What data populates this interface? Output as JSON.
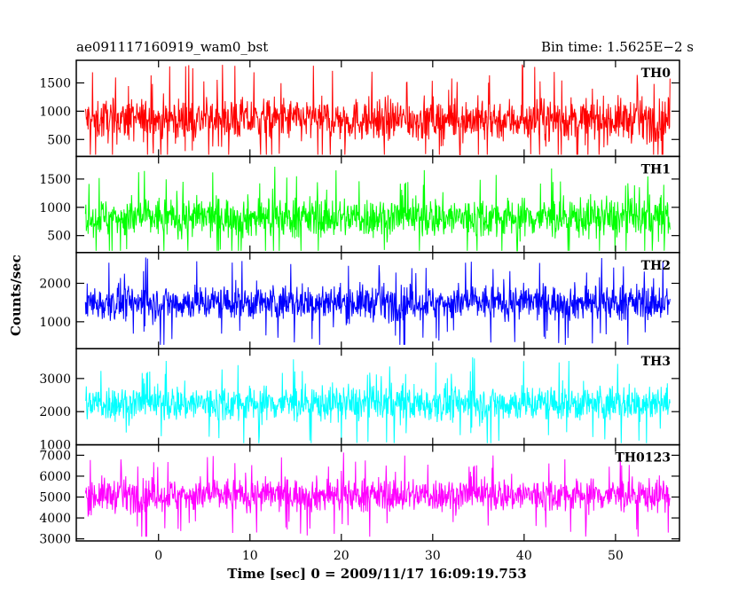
{
  "header": {
    "title_left": "ae091117160919_wam0_bst",
    "title_right": "Bin time: 1.5625E−2 s"
  },
  "chart_data": {
    "type": "line",
    "title": "ae091117160919_wam0_bst",
    "subtitle": "Bin time: 1.5625E−2 s",
    "xlabel": "Time [sec] 0 = 2009/11/17 16:09:19.753",
    "ylabel": "Counts/sec",
    "xlim": [
      -9,
      57
    ],
    "x_range_data": [
      -8,
      56
    ],
    "x_ticks": [
      0,
      10,
      20,
      30,
      40,
      50
    ],
    "grid": false,
    "panels": [
      {
        "name": "TH0",
        "color": "#ff0000",
        "ylim": [
          200,
          1900
        ],
        "y_ticks": [
          500,
          1000,
          1500
        ],
        "mean": 850,
        "amplitude": 650,
        "min": 230,
        "max": 1880
      },
      {
        "name": "TH1",
        "color": "#00ff00",
        "ylim": [
          200,
          1900
        ],
        "y_ticks": [
          500,
          1000,
          1500
        ],
        "mean": 820,
        "amplitude": 620,
        "min": 230,
        "max": 1880
      },
      {
        "name": "TH2",
        "color": "#0000ff",
        "ylim": [
          300,
          2800
        ],
        "y_ticks": [
          1000,
          2000
        ],
        "mean": 1500,
        "amplitude": 800,
        "min": 400,
        "max": 2750
      },
      {
        "name": "TH3",
        "color": "#00ffff",
        "ylim": [
          1000,
          3900
        ],
        "y_ticks": [
          1000,
          2000,
          3000
        ],
        "mean": 2250,
        "amplitude": 950,
        "min": 1050,
        "max": 3850
      },
      {
        "name": "TH0123",
        "color": "#ff00ff",
        "ylim": [
          2900,
          7500
        ],
        "y_ticks": [
          3000,
          4000,
          5000,
          6000,
          7000
        ],
        "mean": 5100,
        "amplitude": 1400,
        "min": 3100,
        "max": 7400
      }
    ]
  }
}
